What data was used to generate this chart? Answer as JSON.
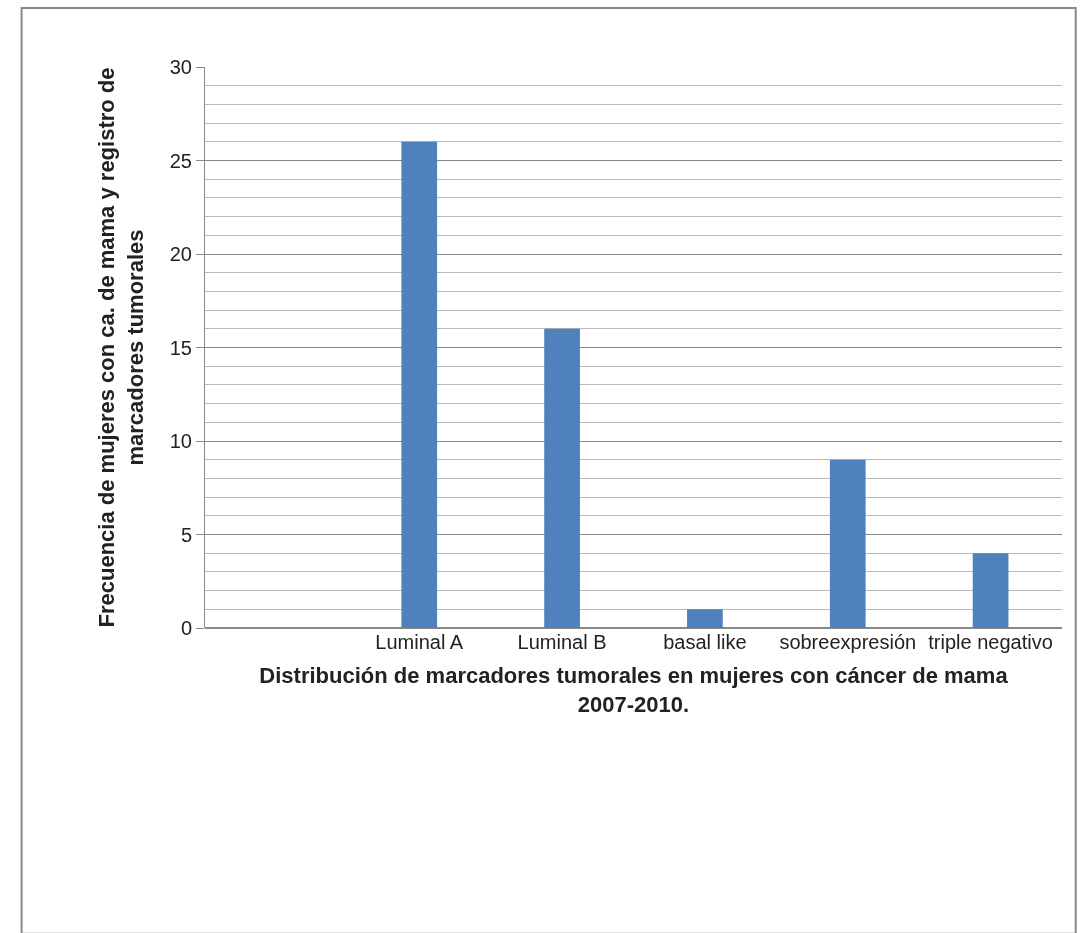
{
  "chart_data": {
    "type": "bar",
    "xlabel": "Distribución de marcadores tumorales en mujeres con cáncer de mama 2007-2010.",
    "ylabel": "Frecuencia de mujeres con ca. de mama y registro de marcadores tumorales",
    "categories": [
      null,
      "Luminal A",
      "Luminal B",
      "basal like",
      "sobreexpresión",
      "triple negativo"
    ],
    "values": [
      null,
      26,
      16,
      1,
      9,
      4
    ],
    "color": "#4f81bd",
    "ylim": [
      0,
      30
    ],
    "yticks": [
      0,
      5,
      10,
      15,
      20,
      25,
      30
    ],
    "grid": "y"
  }
}
